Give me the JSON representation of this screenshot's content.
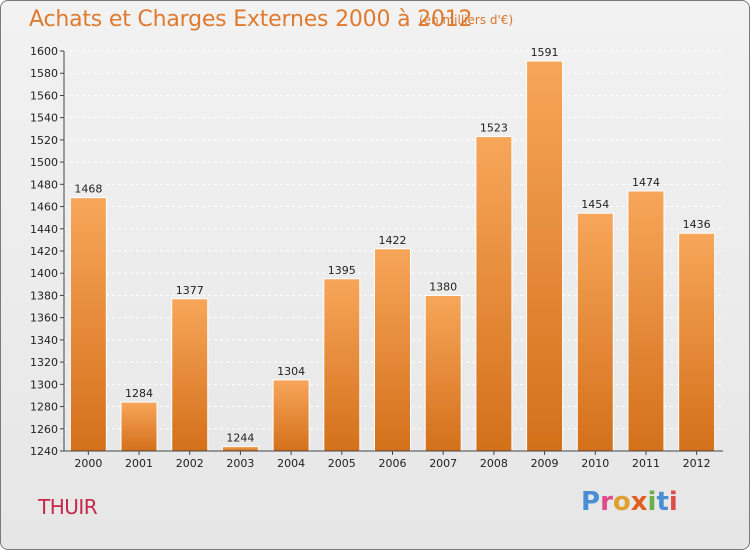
{
  "title": "Achats et Charges Externes 2000 à 2012",
  "subtitle": "(en milliers d'€)",
  "location": "THUIR",
  "logo": {
    "text": "Proxiti",
    "letters": [
      {
        "char": "P",
        "color": "#4a8fd4"
      },
      {
        "char": "r",
        "color": "#e04a8a"
      },
      {
        "char": "o",
        "color": "#e0a030"
      },
      {
        "char": "x",
        "color": "#e06020"
      },
      {
        "char": "i",
        "color": "#6ab04a"
      },
      {
        "char": "t",
        "color": "#4a8fd4"
      },
      {
        "char": "i",
        "color": "#e04a4a"
      }
    ]
  },
  "colors": {
    "bar_top": "#f7a65a",
    "bar_bottom": "#d4701a",
    "bar_edge": "#ffffff",
    "grid": "#ffffff",
    "axis": "#444444",
    "title": "#e07a2e",
    "location": "#c4284a"
  },
  "chart_data": {
    "type": "bar",
    "title": "Achats et Charges Externes 2000 à 2012",
    "subtitle": "(en milliers d'€)",
    "categories": [
      "2000",
      "2001",
      "2002",
      "2003",
      "2004",
      "2005",
      "2006",
      "2007",
      "2008",
      "2009",
      "2010",
      "2011",
      "2012"
    ],
    "values": [
      1468,
      1284,
      1377,
      1244,
      1304,
      1395,
      1422,
      1380,
      1523,
      1591,
      1454,
      1474,
      1436
    ],
    "ylim": [
      1240,
      1600
    ],
    "yticks": [
      1240,
      1260,
      1280,
      1300,
      1320,
      1340,
      1360,
      1380,
      1400,
      1420,
      1440,
      1460,
      1480,
      1500,
      1520,
      1540,
      1560,
      1580,
      1600
    ],
    "grid": true,
    "xlabel": "",
    "ylabel": ""
  }
}
